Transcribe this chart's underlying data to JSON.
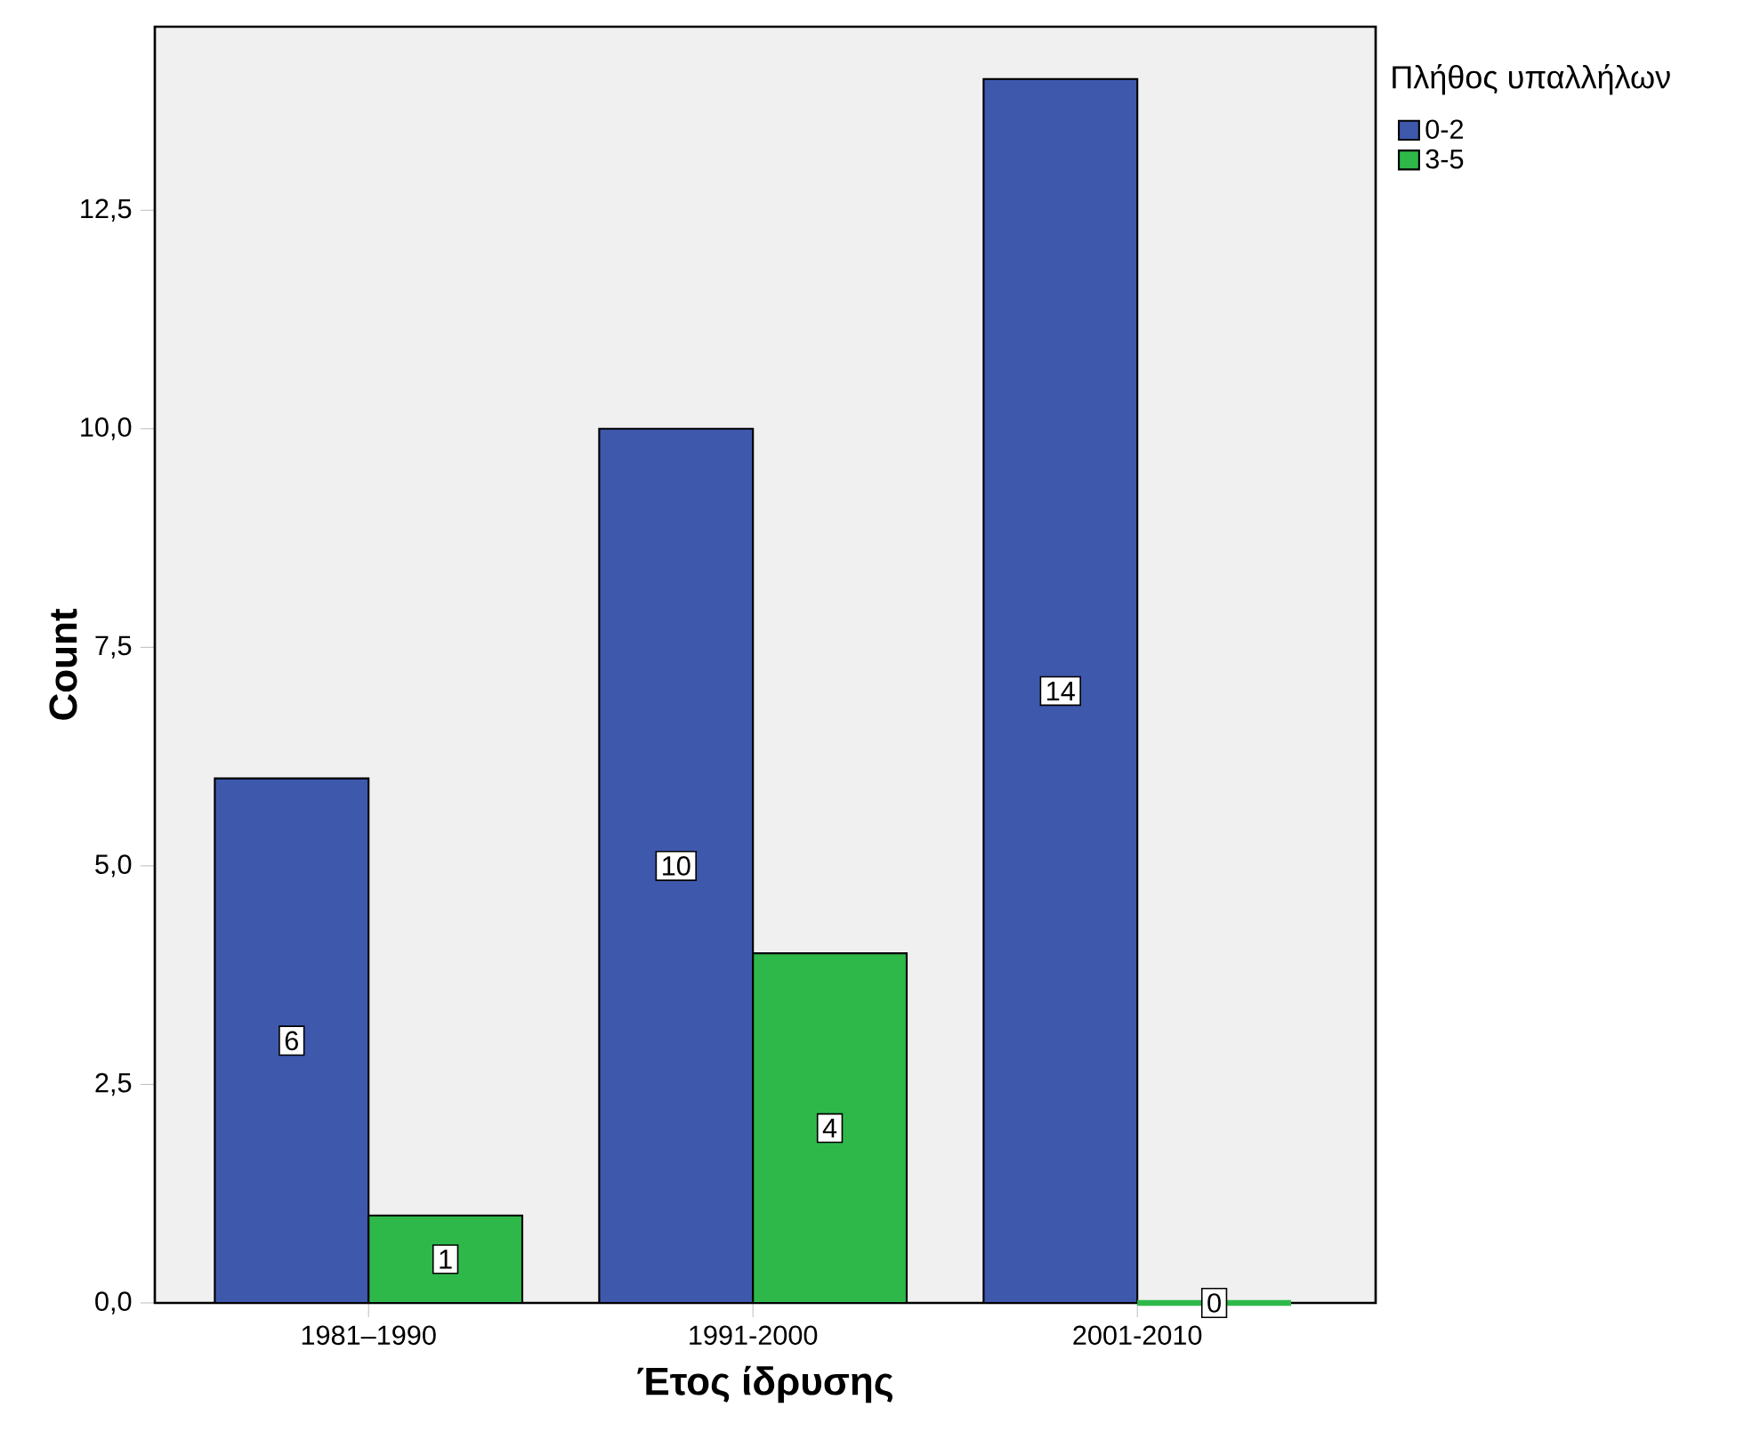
{
  "chart_data": {
    "type": "bar",
    "xlabel": "Έτος ίδρυσης",
    "ylabel": "Count",
    "legend_title": "Πλήθος υπαλλήλων",
    "categories": [
      "1981–1990",
      "1991-2000",
      "2001-2010"
    ],
    "series": [
      {
        "name": "0-2",
        "color": "#3e58ac",
        "values": [
          6,
          10,
          14
        ]
      },
      {
        "name": "3-5",
        "color": "#2fb84a",
        "values": [
          1,
          4,
          0
        ]
      }
    ],
    "ylim": [
      0,
      14.6
    ],
    "yticks": [
      {
        "value": 0,
        "label": "0,0"
      },
      {
        "value": 2.5,
        "label": "2,5"
      },
      {
        "value": 5,
        "label": "5,0"
      },
      {
        "value": 7.5,
        "label": "7,5"
      },
      {
        "value": 10,
        "label": "10,0"
      },
      {
        "value": 12.5,
        "label": "12,5"
      }
    ],
    "data_labels": true,
    "legend": "right",
    "grid": false
  }
}
